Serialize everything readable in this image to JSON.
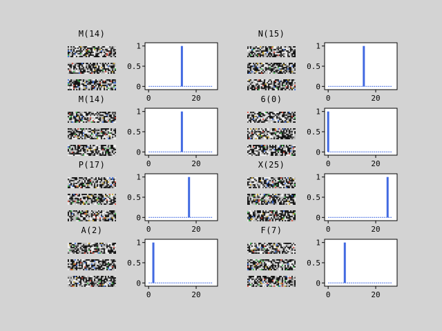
{
  "chart_data": [
    {
      "type": "bar",
      "title": "M(14)",
      "label_index": 14,
      "x": [
        0,
        1,
        2,
        3,
        4,
        5,
        6,
        7,
        8,
        9,
        10,
        11,
        12,
        13,
        14,
        15,
        16,
        17,
        18,
        19,
        20,
        21,
        22,
        23,
        24,
        25,
        26,
        27
      ],
      "values": [
        0,
        0,
        0,
        0,
        0,
        0,
        0,
        0,
        0,
        0,
        0,
        0,
        0,
        0,
        1,
        0,
        0,
        0,
        0,
        0,
        0,
        0,
        0,
        0,
        0,
        0,
        0,
        0
      ],
      "xticks": [
        0,
        20
      ],
      "yticks": [
        0,
        0.5,
        1
      ],
      "ylim": [
        0,
        1
      ],
      "xlim": [
        -1.5,
        29
      ]
    },
    {
      "type": "bar",
      "title": "N(15)",
      "label_index": 15,
      "x": [
        0,
        1,
        2,
        3,
        4,
        5,
        6,
        7,
        8,
        9,
        10,
        11,
        12,
        13,
        14,
        15,
        16,
        17,
        18,
        19,
        20,
        21,
        22,
        23,
        24,
        25,
        26,
        27
      ],
      "values": [
        0,
        0,
        0,
        0,
        0,
        0,
        0,
        0,
        0,
        0,
        0,
        0,
        0,
        0,
        0,
        1,
        0,
        0,
        0,
        0,
        0,
        0,
        0,
        0,
        0,
        0,
        0,
        0
      ],
      "xticks": [
        0,
        20
      ],
      "yticks": [
        0,
        0.5,
        1
      ],
      "ylim": [
        0,
        1
      ],
      "xlim": [
        -1.5,
        29
      ]
    },
    {
      "type": "bar",
      "title": "M(14)",
      "label_index": 14,
      "x": [
        0,
        1,
        2,
        3,
        4,
        5,
        6,
        7,
        8,
        9,
        10,
        11,
        12,
        13,
        14,
        15,
        16,
        17,
        18,
        19,
        20,
        21,
        22,
        23,
        24,
        25,
        26,
        27
      ],
      "values": [
        0,
        0,
        0,
        0,
        0,
        0,
        0,
        0,
        0,
        0,
        0,
        0,
        0,
        0,
        1,
        0,
        0,
        0,
        0,
        0,
        0,
        0,
        0,
        0,
        0,
        0,
        0,
        0
      ],
      "xticks": [
        0,
        20
      ],
      "yticks": [
        0,
        0.5,
        1
      ],
      "ylim": [
        0,
        1
      ],
      "xlim": [
        -1.5,
        29
      ]
    },
    {
      "type": "bar",
      "title": "6(0)",
      "label_index": 0,
      "x": [
        0,
        1,
        2,
        3,
        4,
        5,
        6,
        7,
        8,
        9,
        10,
        11,
        12,
        13,
        14,
        15,
        16,
        17,
        18,
        19,
        20,
        21,
        22,
        23,
        24,
        25,
        26,
        27
      ],
      "values": [
        1,
        0,
        0,
        0,
        0,
        0,
        0,
        0,
        0,
        0,
        0,
        0,
        0,
        0,
        0,
        0,
        0,
        0,
        0,
        0,
        0,
        0,
        0,
        0,
        0,
        0,
        0,
        0
      ],
      "xticks": [
        0,
        20
      ],
      "yticks": [
        0,
        0.5,
        1
      ],
      "ylim": [
        0,
        1
      ],
      "xlim": [
        -1.5,
        29
      ]
    },
    {
      "type": "bar",
      "title": "P(17)",
      "label_index": 17,
      "x": [
        0,
        1,
        2,
        3,
        4,
        5,
        6,
        7,
        8,
        9,
        10,
        11,
        12,
        13,
        14,
        15,
        16,
        17,
        18,
        19,
        20,
        21,
        22,
        23,
        24,
        25,
        26,
        27
      ],
      "values": [
        0,
        0,
        0,
        0,
        0,
        0,
        0,
        0,
        0,
        0,
        0,
        0,
        0,
        0,
        0,
        0,
        0,
        1,
        0,
        0,
        0,
        0,
        0,
        0,
        0,
        0,
        0,
        0
      ],
      "xticks": [
        0,
        20
      ],
      "yticks": [
        0,
        0.5,
        1
      ],
      "ylim": [
        0,
        1
      ],
      "xlim": [
        -1.5,
        29
      ]
    },
    {
      "type": "bar",
      "title": "X(25)",
      "label_index": 25,
      "x": [
        0,
        1,
        2,
        3,
        4,
        5,
        6,
        7,
        8,
        9,
        10,
        11,
        12,
        13,
        14,
        15,
        16,
        17,
        18,
        19,
        20,
        21,
        22,
        23,
        24,
        25,
        26,
        27
      ],
      "values": [
        0,
        0,
        0,
        0,
        0,
        0,
        0,
        0,
        0,
        0,
        0,
        0,
        0,
        0,
        0,
        0,
        0,
        0,
        0,
        0,
        0,
        0,
        0,
        0,
        0,
        1,
        0,
        0
      ],
      "xticks": [
        0,
        20
      ],
      "yticks": [
        0,
        0.5,
        1
      ],
      "ylim": [
        0,
        1
      ],
      "xlim": [
        -1.5,
        29
      ]
    },
    {
      "type": "bar",
      "title": "A(2)",
      "label_index": 2,
      "x": [
        0,
        1,
        2,
        3,
        4,
        5,
        6,
        7,
        8,
        9,
        10,
        11,
        12,
        13,
        14,
        15,
        16,
        17,
        18,
        19,
        20,
        21,
        22,
        23,
        24,
        25,
        26,
        27
      ],
      "values": [
        0,
        0,
        1,
        0,
        0,
        0,
        0,
        0,
        0,
        0,
        0,
        0,
        0,
        0,
        0,
        0,
        0,
        0,
        0,
        0,
        0,
        0,
        0,
        0,
        0,
        0,
        0,
        0
      ],
      "xticks": [
        0,
        20
      ],
      "yticks": [
        0,
        0.5,
        1
      ],
      "ylim": [
        0,
        1
      ],
      "xlim": [
        -1.5,
        29
      ]
    },
    {
      "type": "bar",
      "title": "F(7)",
      "label_index": 7,
      "x": [
        0,
        1,
        2,
        3,
        4,
        5,
        6,
        7,
        8,
        9,
        10,
        11,
        12,
        13,
        14,
        15,
        16,
        17,
        18,
        19,
        20,
        21,
        22,
        23,
        24,
        25,
        26,
        27
      ],
      "values": [
        0,
        0,
        0,
        0,
        0,
        0,
        0,
        1,
        0,
        0,
        0,
        0,
        0,
        0,
        0,
        0,
        0,
        0,
        0,
        0,
        0,
        0,
        0,
        0,
        0,
        0,
        0,
        0
      ],
      "xticks": [
        0,
        20
      ],
      "yticks": [
        0,
        0.5,
        1
      ],
      "ylim": [
        0,
        1
      ],
      "xlim": [
        -1.5,
        29
      ]
    }
  ],
  "colors": {
    "background": "#d3d3d3",
    "bar": "#4169e1",
    "axes_face": "#ffffff",
    "axes_edge": "#000000"
  }
}
